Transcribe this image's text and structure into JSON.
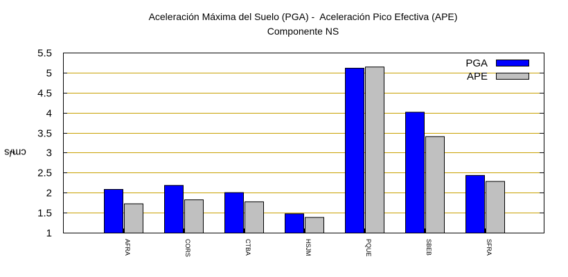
{
  "chart_data": {
    "type": "bar",
    "title_line1": "Aceleración Máxima del Suelo (PGA) -  Aceleración Pico Efectiva (APE)",
    "title_line2": "Componente NS",
    "ylabel_base": "cm/s",
    "ylabel_exp": "2",
    "xlabel": "",
    "ylim": [
      1,
      5.5
    ],
    "yticks": [
      "1",
      "1.5",
      "2",
      "2.5",
      "3",
      "3.5",
      "4",
      "4.5",
      "5",
      "5.5"
    ],
    "grid": "horizontal",
    "legend_position": "top-right",
    "categories": [
      "AFRA",
      "CORS",
      "CTBA",
      "HSJM",
      "PQUE",
      "SBEB",
      "SFRA"
    ],
    "series": [
      {
        "name": "PGA",
        "color": "#0000ff",
        "values": [
          2.09,
          2.19,
          2.01,
          1.48,
          5.12,
          4.02,
          2.44
        ]
      },
      {
        "name": "APE",
        "color": "#c0c0c0",
        "values": [
          1.73,
          1.83,
          1.78,
          1.39,
          5.15,
          3.41,
          2.29
        ]
      }
    ],
    "grid_color": "#c8a000"
  }
}
